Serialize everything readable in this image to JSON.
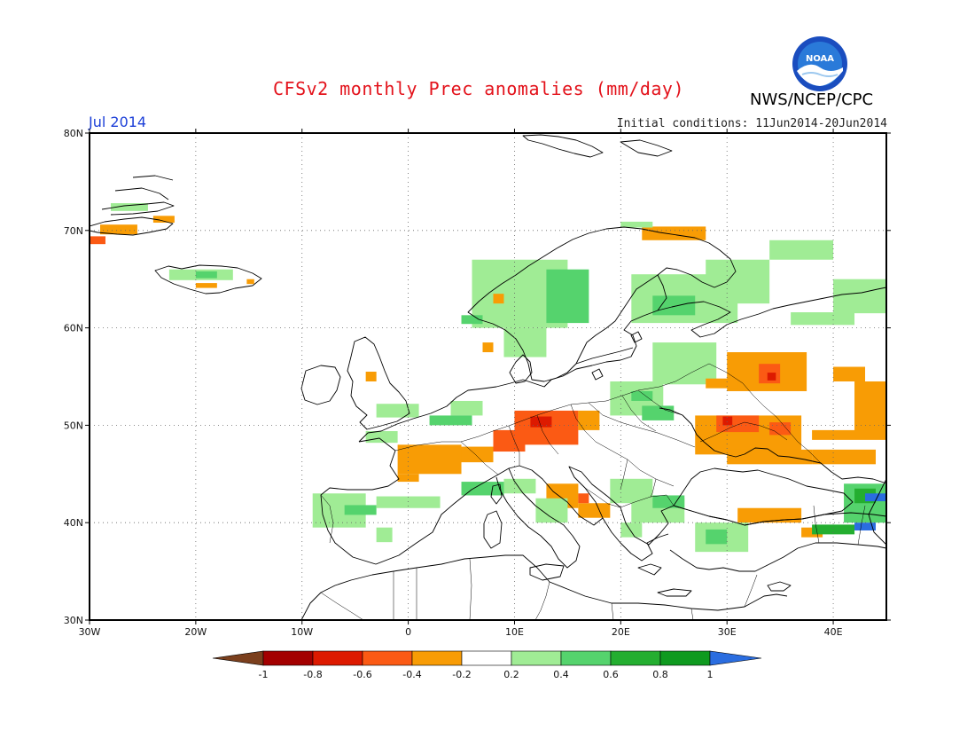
{
  "header": {
    "title": "CFSv2 monthly Prec anomalies (mm/day)",
    "agency": "NWS/NCEP/CPC",
    "month": "Jul 2014",
    "initial_conditions": "Initial conditions: 11Jun2014-20Jun2014",
    "logo_text": "NOAA"
  },
  "map": {
    "lon_range": [
      -30,
      45
    ],
    "lat_range": [
      30,
      80
    ],
    "grid_dotted": true,
    "lat_ticks": [
      {
        "value": 80,
        "label": "80N"
      },
      {
        "value": 70,
        "label": "70N"
      },
      {
        "value": 60,
        "label": "60N"
      },
      {
        "value": 50,
        "label": "50N"
      },
      {
        "value": 40,
        "label": "40N"
      },
      {
        "value": 30,
        "label": "30N"
      }
    ],
    "lon_ticks": [
      {
        "value": -30,
        "label": "30W"
      },
      {
        "value": -20,
        "label": "20W"
      },
      {
        "value": -10,
        "label": "10W"
      },
      {
        "value": 0,
        "label": "0"
      },
      {
        "value": 10,
        "label": "10E"
      },
      {
        "value": 20,
        "label": "20E"
      },
      {
        "value": 30,
        "label": "30E"
      },
      {
        "value": 40,
        "label": "40E"
      }
    ],
    "anomaly_areas": [
      {
        "lon": [
          -28,
          -24.5
        ],
        "lat": [
          72,
          72.8
        ],
        "value": 0.3
      },
      {
        "lon": [
          -24,
          -22
        ],
        "lat": [
          70.8,
          71.5
        ],
        "value": -0.3
      },
      {
        "lon": [
          -29,
          -25.5
        ],
        "lat": [
          69.6,
          70.6
        ],
        "value": -0.3
      },
      {
        "lon": [
          -30,
          -28.5
        ],
        "lat": [
          68.6,
          69.4
        ],
        "value": -0.5
      },
      {
        "lon": [
          -22.5,
          -16.5
        ],
        "lat": [
          64.9,
          66
        ],
        "value": 0.3
      },
      {
        "lon": [
          -20,
          -18
        ],
        "lat": [
          65.1,
          65.8
        ],
        "value": 0.5
      },
      {
        "lon": [
          -20,
          -18
        ],
        "lat": [
          64.1,
          64.6
        ],
        "value": -0.3
      },
      {
        "lon": [
          -15.2,
          -14.5
        ],
        "lat": [
          64.5,
          65.0
        ],
        "value": -0.3
      },
      {
        "lon": [
          6,
          15
        ],
        "lat": [
          60,
          67
        ],
        "value": 0.3
      },
      {
        "lon": [
          13,
          17
        ],
        "lat": [
          60.5,
          66
        ],
        "value": 0.5
      },
      {
        "lon": [
          9,
          13
        ],
        "lat": [
          57,
          60
        ],
        "value": 0.3
      },
      {
        "lon": [
          8,
          9
        ],
        "lat": [
          62.5,
          63.5
        ],
        "value": -0.3
      },
      {
        "lon": [
          5,
          7
        ],
        "lat": [
          60.4,
          61.3
        ],
        "value": 0.5
      },
      {
        "lon": [
          7,
          8
        ],
        "lat": [
          57.5,
          58.5
        ],
        "value": -0.3
      },
      {
        "lon": [
          22,
          28
        ],
        "lat": [
          69,
          70.4
        ],
        "value": -0.3
      },
      {
        "lon": [
          20,
          23
        ],
        "lat": [
          70.3,
          70.9
        ],
        "value": 0.3
      },
      {
        "lon": [
          21,
          31
        ],
        "lat": [
          60.5,
          65.5
        ],
        "value": 0.3
      },
      {
        "lon": [
          23,
          27
        ],
        "lat": [
          61.3,
          63.3
        ],
        "value": 0.5
      },
      {
        "lon": [
          28,
          34
        ],
        "lat": [
          62.5,
          67
        ],
        "value": 0.3
      },
      {
        "lon": [
          34,
          40
        ],
        "lat": [
          67,
          69
        ],
        "value": 0.3
      },
      {
        "lon": [
          40,
          45
        ],
        "lat": [
          61.5,
          65
        ],
        "value": 0.3
      },
      {
        "lon": [
          36,
          42
        ],
        "lat": [
          60.3,
          61.6
        ],
        "value": 0.3
      },
      {
        "lon": [
          23,
          29
        ],
        "lat": [
          54.2,
          58.5
        ],
        "value": 0.3
      },
      {
        "lon": [
          19,
          24
        ],
        "lat": [
          51,
          54.5
        ],
        "value": 0.3
      },
      {
        "lon": [
          21,
          23
        ],
        "lat": [
          52.5,
          53.5
        ],
        "value": 0.5
      },
      {
        "lon": [
          22,
          25
        ],
        "lat": [
          50.5,
          52
        ],
        "value": 0.5
      },
      {
        "lon": [
          30,
          37.5
        ],
        "lat": [
          53.5,
          57.5
        ],
        "value": -0.3
      },
      {
        "lon": [
          33,
          35
        ],
        "lat": [
          54.3,
          56.3
        ],
        "value": -0.5
      },
      {
        "lon": [
          33.8,
          34.6
        ],
        "lat": [
          54.6,
          55.4
        ],
        "value": -0.8
      },
      {
        "lon": [
          28,
          31
        ],
        "lat": [
          53.8,
          54.8
        ],
        "value": -0.3
      },
      {
        "lon": [
          40,
          43
        ],
        "lat": [
          54.5,
          56
        ],
        "value": -0.3
      },
      {
        "lon": [
          42,
          45
        ],
        "lat": [
          48.8,
          54.5
        ],
        "value": -0.3
      },
      {
        "lon": [
          38,
          45
        ],
        "lat": [
          48.5,
          49.5
        ],
        "value": -0.3
      },
      {
        "lon": [
          27,
          37
        ],
        "lat": [
          47,
          51
        ],
        "value": -0.3
      },
      {
        "lon": [
          29,
          33
        ],
        "lat": [
          49.3,
          51
        ],
        "value": -0.5
      },
      {
        "lon": [
          29.6,
          30.5
        ],
        "lat": [
          50,
          50.9
        ],
        "value": -0.8
      },
      {
        "lon": [
          34,
          36
        ],
        "lat": [
          49,
          50.3
        ],
        "value": -0.5
      },
      {
        "lon": [
          30,
          38
        ],
        "lat": [
          46,
          47.5
        ],
        "value": -0.3
      },
      {
        "lon": [
          38,
          44
        ],
        "lat": [
          46,
          47.5
        ],
        "value": -0.3
      },
      {
        "lon": [
          10,
          16
        ],
        "lat": [
          48,
          51.5
        ],
        "value": -0.5
      },
      {
        "lon": [
          8,
          11
        ],
        "lat": [
          47.3,
          49.5
        ],
        "value": -0.5
      },
      {
        "lon": [
          11.5,
          13.5
        ],
        "lat": [
          49.8,
          50.9
        ],
        "value": -0.8
      },
      {
        "lon": [
          16,
          18
        ],
        "lat": [
          49.5,
          51.5
        ],
        "value": -0.3
      },
      {
        "lon": [
          4,
          8
        ],
        "lat": [
          46.2,
          47.8
        ],
        "value": -0.3
      },
      {
        "lon": [
          -1,
          5
        ],
        "lat": [
          45,
          48
        ],
        "value": -0.3
      },
      {
        "lon": [
          -1,
          1
        ],
        "lat": [
          44.2,
          45
        ],
        "value": -0.3
      },
      {
        "lon": [
          13,
          16
        ],
        "lat": [
          41.5,
          44
        ],
        "value": -0.3
      },
      {
        "lon": [
          16,
          19
        ],
        "lat": [
          40.5,
          42
        ],
        "value": -0.3
      },
      {
        "lon": [
          16,
          17
        ],
        "lat": [
          42,
          43
        ],
        "value": -0.5
      },
      {
        "lon": [
          33,
          36
        ],
        "lat": [
          40.3,
          41.3
        ],
        "value": -0.5
      },
      {
        "lon": [
          31,
          37
        ],
        "lat": [
          40,
          41.5
        ],
        "value": -0.3
      },
      {
        "lon": [
          41,
          43
        ],
        "lat": [
          42.5,
          43.5
        ],
        "value": -0.3
      },
      {
        "lon": [
          -9,
          -4
        ],
        "lat": [
          39.5,
          43
        ],
        "value": 0.3
      },
      {
        "lon": [
          -6,
          -3
        ],
        "lat": [
          40.8,
          41.8
        ],
        "value": 0.5
      },
      {
        "lon": [
          -3,
          3
        ],
        "lat": [
          41.5,
          42.7
        ],
        "value": 0.3
      },
      {
        "lon": [
          -3,
          -1.5
        ],
        "lat": [
          38,
          39.5
        ],
        "value": 0.3
      },
      {
        "lon": [
          5,
          9
        ],
        "lat": [
          42.8,
          44.2
        ],
        "value": 0.5
      },
      {
        "lon": [
          9,
          12
        ],
        "lat": [
          43,
          44.5
        ],
        "value": 0.3
      },
      {
        "lon": [
          12,
          15
        ],
        "lat": [
          40,
          42.5
        ],
        "value": 0.3
      },
      {
        "lon": [
          19,
          23
        ],
        "lat": [
          42,
          44.5
        ],
        "value": 0.3
      },
      {
        "lon": [
          21,
          26
        ],
        "lat": [
          40,
          42.5
        ],
        "value": 0.3
      },
      {
        "lon": [
          23,
          26
        ],
        "lat": [
          41.5,
          42.8
        ],
        "value": 0.5
      },
      {
        "lon": [
          20,
          22
        ],
        "lat": [
          38.5,
          40
        ],
        "value": 0.3
      },
      {
        "lon": [
          27,
          32
        ],
        "lat": [
          37,
          40
        ],
        "value": 0.3
      },
      {
        "lon": [
          28,
          30
        ],
        "lat": [
          37.8,
          39.3
        ],
        "value": 0.5
      },
      {
        "lon": [
          -4,
          -1
        ],
        "lat": [
          48.2,
          49.4
        ],
        "value": 0.3
      },
      {
        "lon": [
          -3,
          1
        ],
        "lat": [
          50.8,
          52.2
        ],
        "value": 0.3
      },
      {
        "lon": [
          -4,
          -3
        ],
        "lat": [
          54.5,
          55.5
        ],
        "value": -0.3
      },
      {
        "lon": [
          4,
          7
        ],
        "lat": [
          51,
          52.5
        ],
        "value": 0.3
      },
      {
        "lon": [
          2,
          6
        ],
        "lat": [
          50,
          51
        ],
        "value": 0.5
      },
      {
        "lon": [
          37,
          39
        ],
        "lat": [
          38.5,
          39.5
        ],
        "value": -0.3
      },
      {
        "lon": [
          38,
          42
        ],
        "lat": [
          38.8,
          39.8
        ],
        "value": 0.7
      },
      {
        "lon": [
          41,
          45
        ],
        "lat": [
          40,
          44
        ],
        "value": 0.4
      },
      {
        "lon": [
          42,
          44
        ],
        "lat": [
          42,
          43.5
        ],
        "value": 0.7
      },
      {
        "lon": [
          43,
          45
        ],
        "lat": [
          42.2,
          43
        ],
        "value": 1.0
      },
      {
        "lon": [
          42,
          44
        ],
        "lat": [
          39.2,
          40
        ],
        "value": 1.0
      }
    ],
    "colorbar": {
      "labels": [
        "-1",
        "-0.8",
        "-0.6",
        "-0.4",
        "-0.2",
        "0.2",
        "0.4",
        "0.6",
        "0.8",
        "1"
      ],
      "low_color": "#7b3f1d",
      "high_color": "#2a6de0",
      "colors": [
        "#a30000",
        "#dd1a00",
        "#fb5a14",
        "#f89c05",
        "#ffffff",
        "#a0ec95",
        "#55d36d",
        "#24ae30",
        "#0f9a1f"
      ]
    }
  }
}
